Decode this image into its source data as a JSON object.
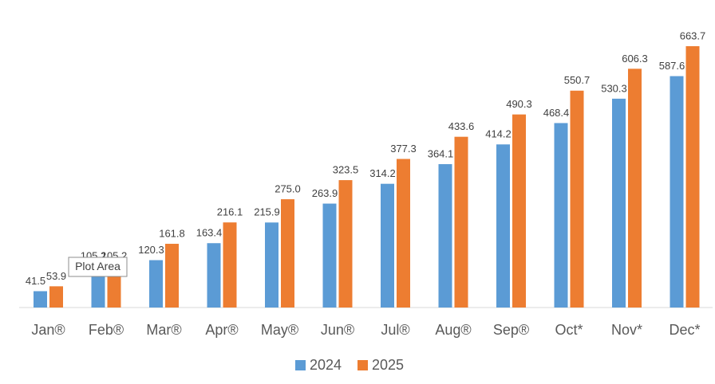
{
  "chart_data": {
    "type": "bar",
    "categories": [
      "Jan®",
      "Feb®",
      "Mar®",
      "Apr®",
      "May®",
      "Jun®",
      "Jul®",
      "Aug®",
      "Sep®",
      "Oct*",
      "Nov*",
      "Dec*"
    ],
    "series": [
      {
        "name": "2024",
        "color": "#5b9bd5",
        "values": [
          41.5,
          105.2,
          120.3,
          163.4,
          215.9,
          263.9,
          314.2,
          364.1,
          414.2,
          468.4,
          530.3,
          587.6
        ]
      },
      {
        "name": "2025",
        "color": "#ed7d31",
        "values": [
          53.9,
          105.2,
          161.8,
          216.1,
          275.0,
          323.5,
          377.3,
          433.6,
          490.3,
          550.7,
          606.3,
          663.7
        ],
        "value_labels": [
          "53.9",
          "105.2",
          "161.8",
          "216.1",
          "275.0",
          "323.5",
          "377.3",
          "433.6",
          "490.3",
          "550.7",
          "606.3",
          "663.7"
        ]
      }
    ],
    "ylim": [
      0,
      700
    ],
    "legend": "bottom",
    "tooltip": "Plot Area"
  }
}
